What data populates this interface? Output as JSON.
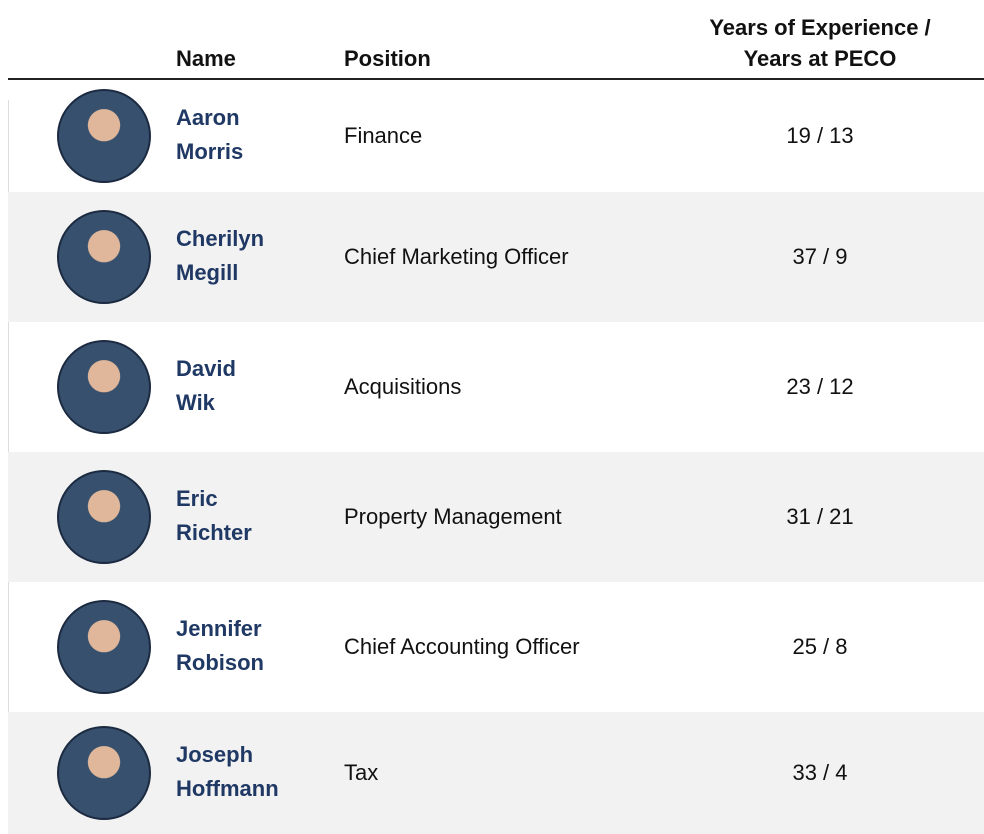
{
  "table": {
    "headers": {
      "name": "Name",
      "position": "Position",
      "years": [
        "Years of Experience /",
        "Years at PECO"
      ]
    },
    "rows": [
      {
        "first": "Aaron",
        "last": "Morris",
        "position": "Finance",
        "years": "19 / 13"
      },
      {
        "first": "Cherilyn",
        "last": "Megill",
        "position": "Chief Marketing Officer",
        "years": "37 / 9"
      },
      {
        "first": "David",
        "last": "Wik",
        "position": "Acquisitions",
        "years": "23 / 12"
      },
      {
        "first": "Eric",
        "last": "Richter",
        "position": "Property Management",
        "years": "31 / 21"
      },
      {
        "first": "Jennifer",
        "last": "Robison",
        "position": "Chief Accounting Officer",
        "years": "25 / 8"
      },
      {
        "first": "Joseph",
        "last": "Hoffmann",
        "position": "Tax",
        "years": "33 / 4"
      }
    ]
  }
}
